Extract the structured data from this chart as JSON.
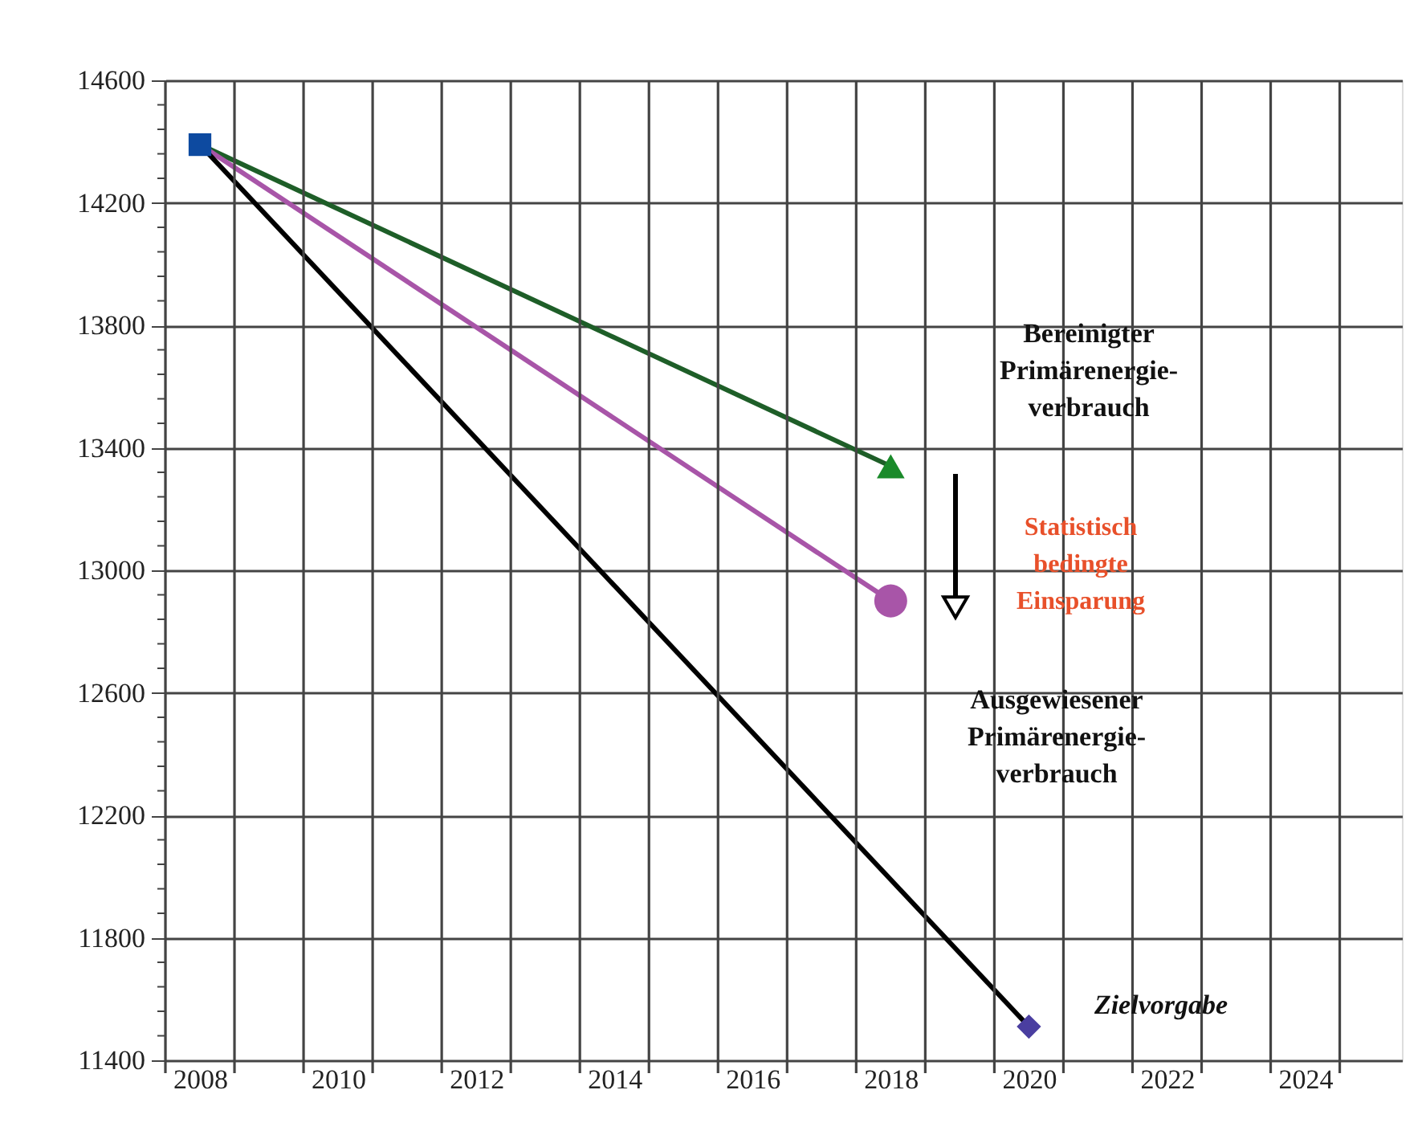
{
  "chart_data": {
    "type": "line",
    "xlim": [
      2007.5,
      2025.4
    ],
    "ylim": [
      11400,
      14600
    ],
    "xticks": [
      {
        "value": 2007.5,
        "label": null
      },
      2008,
      {
        "value": 2008.5,
        "label": null
      },
      {
        "value": 2009.5,
        "label": null
      },
      2010,
      {
        "value": 2010.5,
        "label": null
      },
      {
        "value": 2011.5,
        "label": null
      },
      2012,
      {
        "value": 2012.5,
        "label": null
      },
      {
        "value": 2013.5,
        "label": null
      },
      2014,
      {
        "value": 2014.5,
        "label": null
      },
      {
        "value": 2015.5,
        "label": null
      },
      2016,
      {
        "value": 2016.5,
        "label": null
      },
      {
        "value": 2017.5,
        "label": null
      },
      2018,
      {
        "value": 2018.5,
        "label": null
      },
      {
        "value": 2019.5,
        "label": null
      },
      2020,
      {
        "value": 2020.5,
        "label": null
      },
      {
        "value": 2021.5,
        "label": null
      },
      2022,
      {
        "value": 2022.5,
        "label": null
      },
      {
        "value": 2023.5,
        "label": null
      },
      2024,
      {
        "value": 2024.5,
        "label": null
      }
    ],
    "yticks": [
      11400,
      {
        "value": 11480,
        "label": null
      },
      {
        "value": 11560,
        "label": null
      },
      {
        "value": 11640,
        "label": null
      },
      {
        "value": 11720,
        "label": null
      },
      11800,
      {
        "value": 11880,
        "label": null
      },
      {
        "value": 11960,
        "label": null
      },
      {
        "value": 12040,
        "label": null
      },
      {
        "value": 12120,
        "label": null
      },
      12200,
      {
        "value": 12280,
        "label": null
      },
      {
        "value": 12360,
        "label": null
      },
      {
        "value": 12440,
        "label": null
      },
      {
        "value": 12520,
        "label": null
      },
      12600,
      {
        "value": 12680,
        "label": null
      },
      {
        "value": 12760,
        "label": null
      },
      {
        "value": 12840,
        "label": null
      },
      {
        "value": 12920,
        "label": null
      },
      13000,
      {
        "value": 13080,
        "label": null
      },
      {
        "value": 13160,
        "label": null
      },
      {
        "value": 13240,
        "label": null
      },
      {
        "value": 13320,
        "label": null
      },
      13400,
      {
        "value": 13480,
        "label": null
      },
      {
        "value": 13560,
        "label": null
      },
      {
        "value": 13640,
        "label": null
      },
      {
        "value": 13720,
        "label": null
      },
      13800,
      {
        "value": 13880,
        "label": null
      },
      {
        "value": 13960,
        "label": null
      },
      {
        "value": 14040,
        "label": null
      },
      {
        "value": 14120,
        "label": null
      },
      14200,
      {
        "value": 14280,
        "label": null
      },
      {
        "value": 14360,
        "label": null
      },
      {
        "value": 14440,
        "label": null
      },
      {
        "value": 14520,
        "label": null
      },
      14600
    ],
    "grid": true,
    "series": [
      {
        "color": "#1e5e28",
        "x": [
          2008,
          2018
        ],
        "values": [
          14390,
          13340
        ],
        "marker": "none"
      },
      {
        "color": "#a855a8",
        "x": [
          2008,
          2018
        ],
        "values": [
          14390,
          12900
        ],
        "marker": "none"
      },
      {
        "color": "#000000",
        "x": [
          2008,
          2020
        ],
        "values": [
          14390,
          11510
        ],
        "marker": "none"
      },
      {
        "type": "scatter",
        "color": "#0d4aa0",
        "x": [
          2008
        ],
        "values": [
          14390
        ],
        "marker": "square"
      },
      {
        "type": "scatter",
        "color": "#1a8a2a",
        "x": [
          2018
        ],
        "values": [
          13340
        ],
        "marker": "triangle"
      },
      {
        "type": "scatter",
        "color": "#a855a8",
        "x": [
          2018
        ],
        "values": [
          12900
        ],
        "marker": "circle"
      },
      {
        "type": "scatter",
        "color": "#4a3ea0",
        "x": [
          2020
        ],
        "values": [
          11510
        ],
        "marker": "diamond"
      }
    ],
    "annotations": [
      "Bereinigter\nPrimärenergie-\nverbrauch",
      "Statistisch\nbedingte\nEinsparung",
      "Ausgewiesener\nPrimärenergie-\nverbrauch",
      "Zielvorgabe"
    ]
  }
}
